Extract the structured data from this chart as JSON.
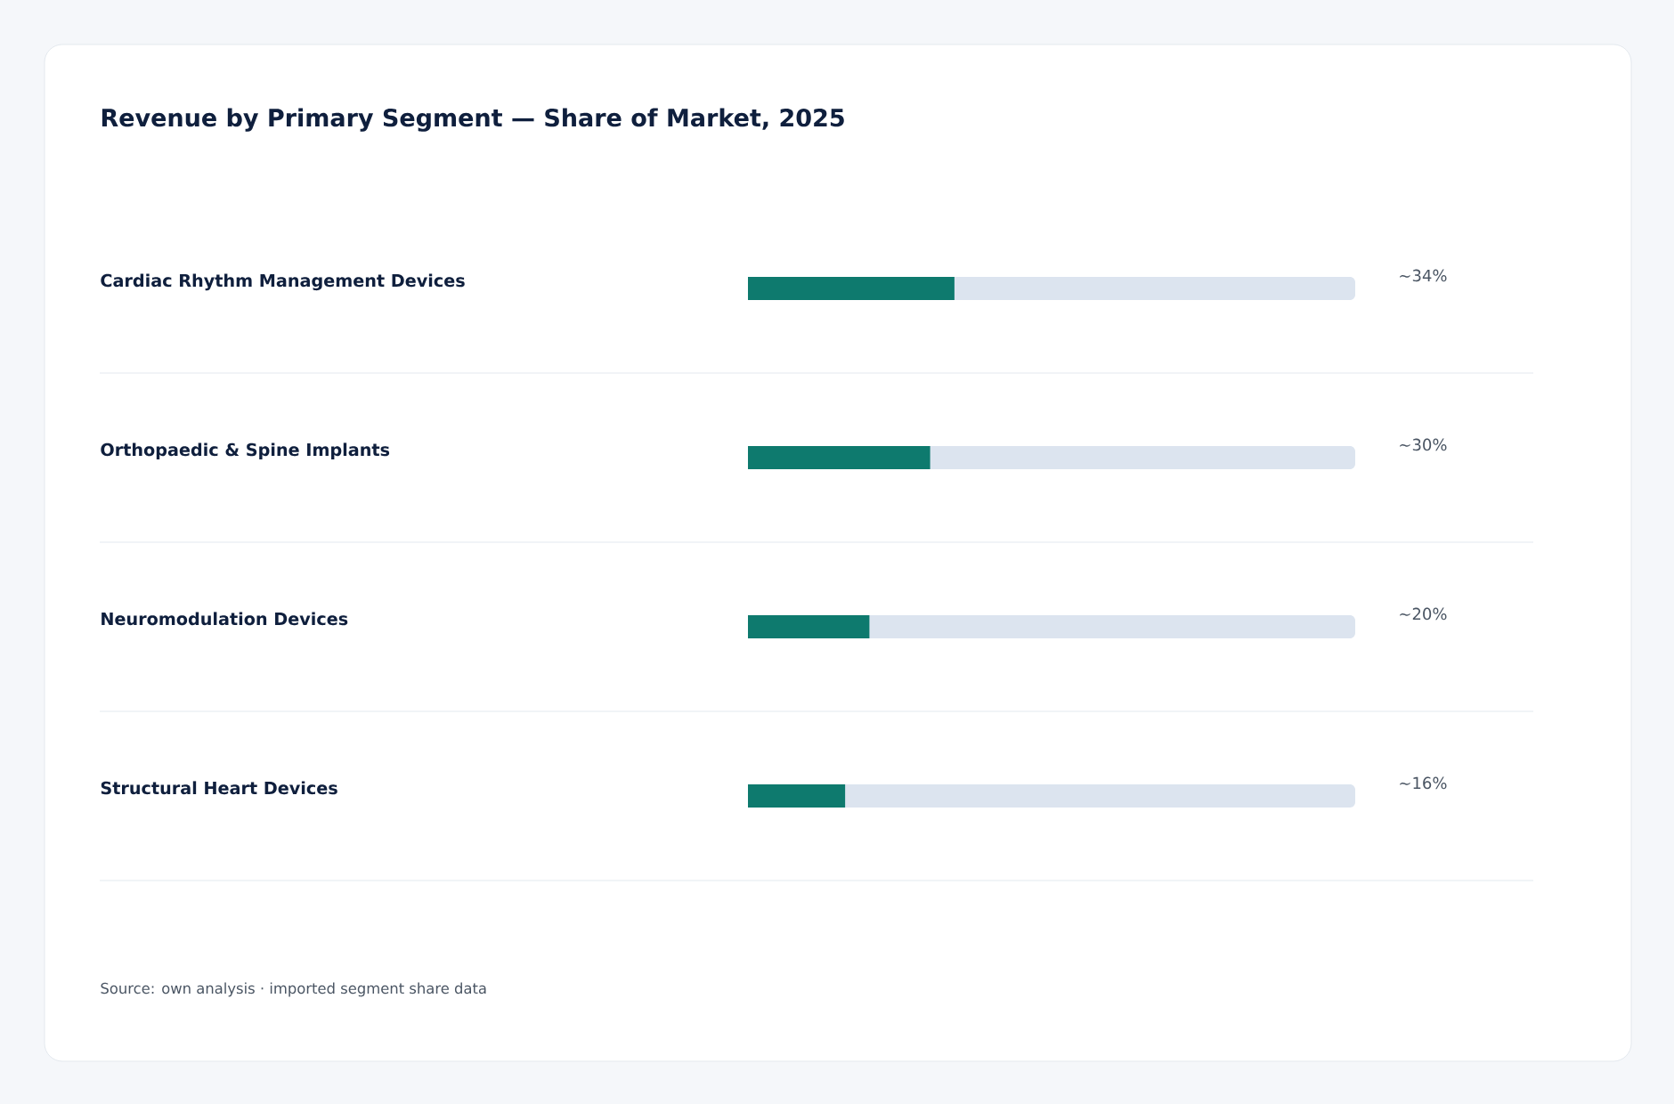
{
  "chart_data": {
    "type": "bar",
    "orientation": "horizontal",
    "title": "Revenue by Primary Segment — Share of Market, 2025",
    "categories": [
      "Cardiac Rhythm Management Devices",
      "Orthopaedic & Spine Implants",
      "Neuromodulation Devices",
      "Structural Heart Devices"
    ],
    "values": [
      34,
      30,
      20,
      16
    ],
    "value_labels": [
      "~34%",
      "~30%",
      "~20%",
      "~16%"
    ],
    "color": "#0e7a6e",
    "xlim": [
      0,
      100
    ],
    "annotations": [
      "Source: own analysis · imported segment share data"
    ]
  }
}
